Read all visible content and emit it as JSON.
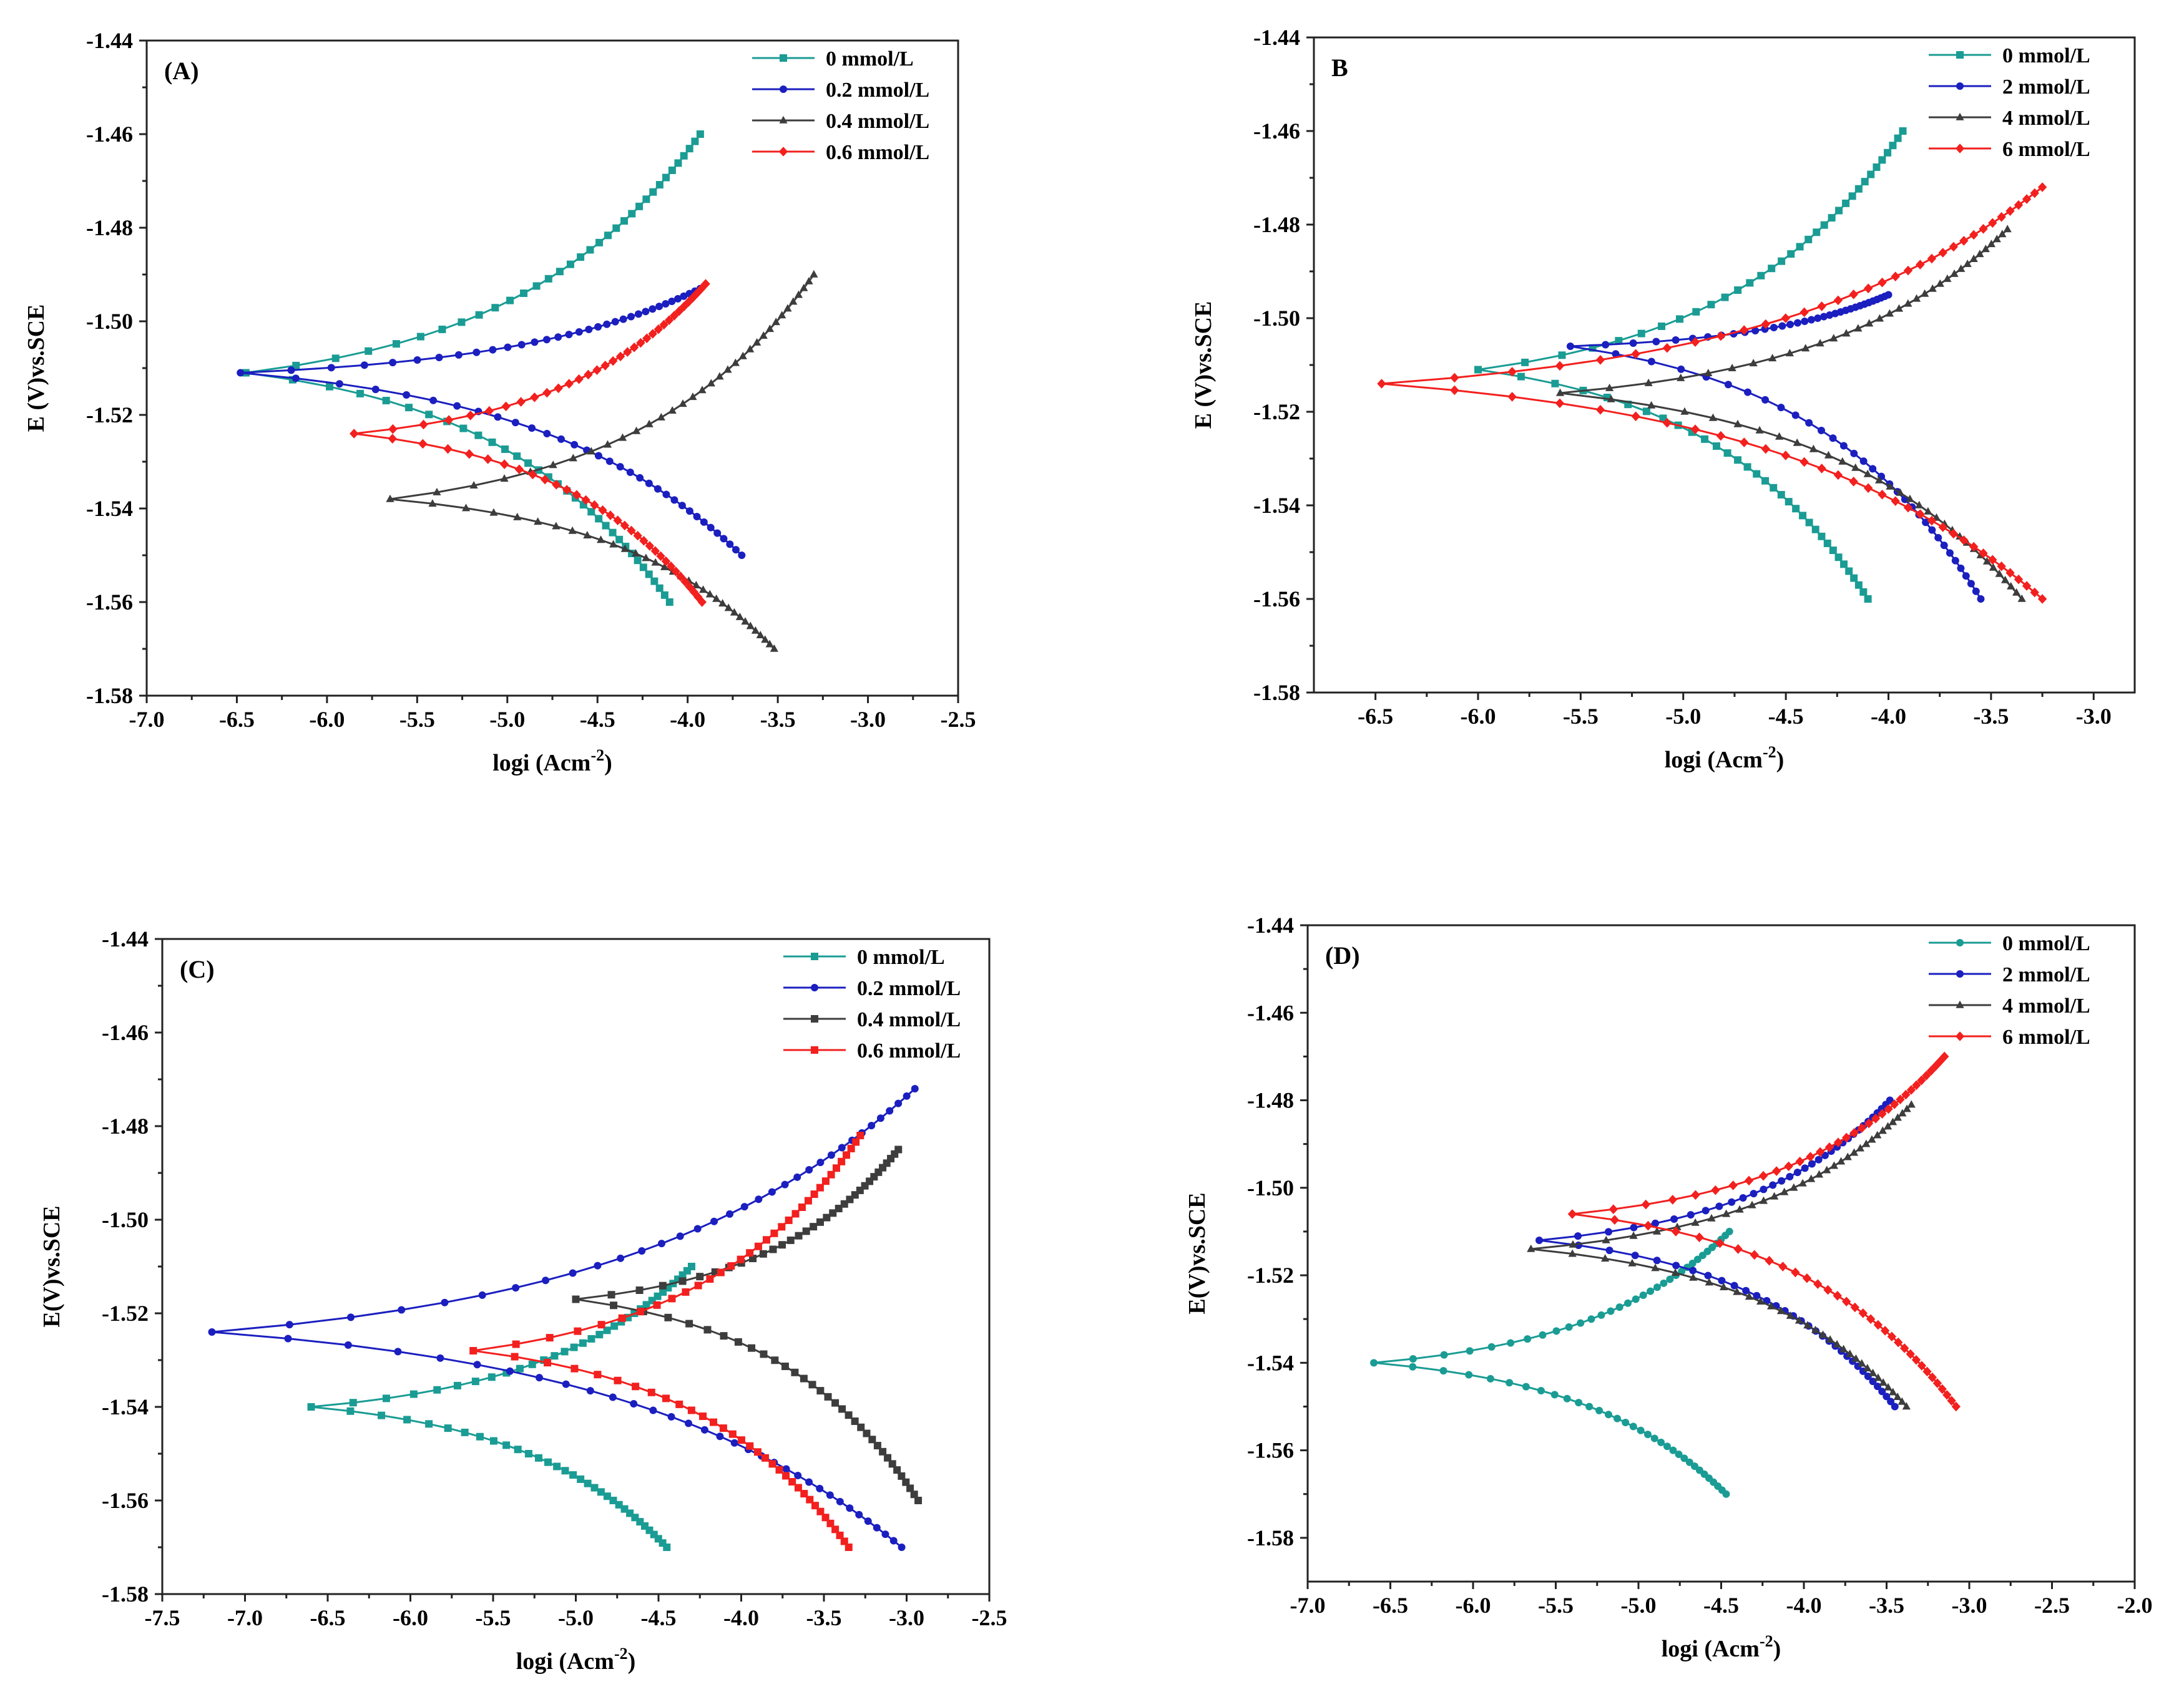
{
  "chart_data": [
    {
      "type": "line",
      "panel_label": "(A)",
      "xlabel": "logi (Acm",
      "xlabel_sup": "-2",
      "xlabel_end": ")",
      "ylabel": "E (V)vs.SCE",
      "xlim": [
        -7.0,
        -2.5
      ],
      "ylim": [
        -1.58,
        -1.44
      ],
      "xticks": [
        -7.0,
        -6.5,
        -6.0,
        -5.5,
        -5.0,
        -4.5,
        -4.0,
        -3.5,
        -3.0,
        -2.5
      ],
      "xtick_labels": [
        "-7.0",
        "-6.5",
        "-6.0",
        "-5.5",
        "-5.0",
        "-4.5",
        "-4.0",
        "-3.5",
        "-3.0",
        "-2.5"
      ],
      "yticks": [
        -1.44,
        -1.46,
        -1.48,
        -1.5,
        -1.52,
        -1.54,
        -1.56,
        -1.58
      ],
      "ytick_labels": [
        "-1.44",
        "-1.46",
        "-1.48",
        "-1.50",
        "-1.52",
        "-1.54",
        "-1.56",
        "-1.58"
      ],
      "legend_position": "top-right",
      "series": [
        {
          "name": "0 mmol/L",
          "color": "#1a9c94",
          "marker": "square",
          "ecorr": -1.511,
          "icorr": -6.45,
          "anodic": [
            -3.93,
            -1.46
          ],
          "cathodic": [
            -4.1,
            -1.56
          ]
        },
        {
          "name": "0.2 mmol/L",
          "color": "#1b1fbf",
          "marker": "circle",
          "ecorr": -1.511,
          "icorr": -6.48,
          "anodic": [
            -3.93,
            -1.493
          ],
          "cathodic": [
            -3.7,
            -1.55
          ]
        },
        {
          "name": "0.4 mmol/L",
          "color": "#3d3d3d",
          "marker": "triangle",
          "ecorr": -1.538,
          "icorr": -5.65,
          "anodic": [
            -3.3,
            -1.49
          ],
          "cathodic": [
            -3.52,
            -1.57
          ]
        },
        {
          "name": "0.6 mmol/L",
          "color": "#f2201e",
          "marker": "diamond",
          "ecorr": -1.524,
          "icorr": -5.85,
          "anodic": [
            -3.9,
            -1.492
          ],
          "cathodic": [
            -3.92,
            -1.56
          ]
        }
      ]
    },
    {
      "type": "line",
      "panel_label": "B",
      "xlabel": "logi (Acm",
      "xlabel_sup": "-2",
      "xlabel_end": ")",
      "ylabel": "E (V)vs.SCE",
      "xlim": [
        -6.8,
        -2.8
      ],
      "ylim": [
        -1.58,
        -1.44
      ],
      "xticks": [
        -6.5,
        -6.0,
        -5.5,
        -5.0,
        -4.5,
        -4.0,
        -3.5,
        -3.0
      ],
      "xtick_labels": [
        "-6.5",
        "-6.0",
        "-5.5",
        "-5.0",
        "-4.5",
        "-4.0",
        "-3.5",
        "-3.0"
      ],
      "yticks": [
        -1.44,
        -1.46,
        -1.48,
        -1.5,
        -1.52,
        -1.54,
        -1.56,
        -1.58
      ],
      "ytick_labels": [
        "-1.44",
        "-1.46",
        "-1.48",
        "-1.50",
        "-1.52",
        "-1.54",
        "-1.56",
        "-1.58"
      ],
      "legend_position": "top-right",
      "series": [
        {
          "name": "0 mmol/L",
          "color": "#1a9c94",
          "marker": "square",
          "ecorr": -1.511,
          "icorr": -6.0,
          "anodic": [
            -3.93,
            -1.46
          ],
          "cathodic": [
            -4.1,
            -1.56
          ]
        },
        {
          "name": "2 mmol/L",
          "color": "#1b1fbf",
          "marker": "circle",
          "ecorr": -1.506,
          "icorr": -5.55,
          "anodic": [
            -4.0,
            -1.495
          ],
          "cathodic": [
            -3.55,
            -1.56
          ]
        },
        {
          "name": "4 mmol/L",
          "color": "#3d3d3d",
          "marker": "triangle",
          "ecorr": -1.516,
          "icorr": -5.6,
          "anodic": [
            -3.42,
            -1.481
          ],
          "cathodic": [
            -3.35,
            -1.56
          ]
        },
        {
          "name": "6 mmol/L",
          "color": "#f2201e",
          "marker": "diamond",
          "ecorr": -1.514,
          "icorr": -6.47,
          "anodic": [
            -3.25,
            -1.472
          ],
          "cathodic": [
            -3.25,
            -1.56
          ]
        }
      ]
    },
    {
      "type": "line",
      "panel_label": "(C)",
      "xlabel": "logi (Acm",
      "xlabel_sup": "-2",
      "xlabel_end": ")",
      "ylabel": "E(V)vs.SCE",
      "xlim": [
        -7.5,
        -2.5
      ],
      "ylim": [
        -1.58,
        -1.44
      ],
      "xticks": [
        -7.5,
        -7.0,
        -6.5,
        -6.0,
        -5.5,
        -5.0,
        -4.5,
        -4.0,
        -3.5,
        -3.0,
        -2.5
      ],
      "xtick_labels": [
        "-7.5",
        "-7.0",
        "-6.5",
        "-6.0",
        "-5.5",
        "-5.0",
        "-4.5",
        "-4.0",
        "-3.5",
        "-3.0",
        "-2.5"
      ],
      "yticks": [
        -1.44,
        -1.46,
        -1.48,
        -1.5,
        -1.52,
        -1.54,
        -1.56,
        -1.58
      ],
      "ytick_labels": [
        "-1.44",
        "-1.46",
        "-1.48",
        "-1.50",
        "-1.52",
        "-1.54",
        "-1.56",
        "-1.58"
      ],
      "legend_position": "top-right",
      "series": [
        {
          "name": "0 mmol/L",
          "color": "#1a9c94",
          "marker": "square",
          "ecorr": -1.54,
          "icorr": -6.6,
          "anodic": [
            -4.3,
            -1.51
          ],
          "cathodic": [
            -4.45,
            -1.57
          ]
        },
        {
          "name": "0.2 mmol/L",
          "color": "#1b1fbf",
          "marker": "circle",
          "ecorr": -1.524,
          "icorr": -7.2,
          "anodic": [
            -2.95,
            -1.472
          ],
          "cathodic": [
            -3.03,
            -1.57
          ]
        },
        {
          "name": "0.4 mmol/L",
          "color": "#3d3d3d",
          "marker": "square",
          "ecorr": -1.517,
          "icorr": -5.0,
          "anodic": [
            -3.05,
            -1.485
          ],
          "cathodic": [
            -2.93,
            -1.56
          ]
        },
        {
          "name": "0.6 mmol/L",
          "color": "#f2201e",
          "marker": "square",
          "ecorr": -1.528,
          "icorr": -5.62,
          "anodic": [
            -3.28,
            -1.482
          ],
          "cathodic": [
            -3.35,
            -1.57
          ]
        }
      ]
    },
    {
      "type": "line",
      "panel_label": "(D)",
      "xlabel": "logi (Acm",
      "xlabel_sup": "-2",
      "xlabel_end": ")",
      "ylabel": "E(V)vs.SCE",
      "xlim": [
        -7.0,
        -2.0
      ],
      "ylim": [
        -1.59,
        -1.44
      ],
      "xticks": [
        -7.0,
        -6.5,
        -6.0,
        -5.5,
        -5.0,
        -4.5,
        -4.0,
        -3.5,
        -3.0,
        -2.5,
        -2.0
      ],
      "xtick_labels": [
        "-7.0",
        "-6.5",
        "-6.0",
        "-5.5",
        "-5.0",
        "-4.5",
        "-4.0",
        "-3.5",
        "-3.0",
        "-2.5",
        "-2.0"
      ],
      "yticks": [
        -1.44,
        -1.46,
        -1.48,
        -1.5,
        -1.52,
        -1.54,
        -1.56,
        -1.58
      ],
      "ytick_labels": [
        "-1.44",
        "-1.46",
        "-1.48",
        "-1.50",
        "-1.52",
        "-1.54",
        "-1.56",
        "-1.58"
      ],
      "legend_position": "top-right",
      "series": [
        {
          "name": "0 mmol/L",
          "color": "#1a9c94",
          "marker": "circle",
          "ecorr": -1.54,
          "icorr": -6.6,
          "anodic": [
            -4.45,
            -1.51
          ],
          "cathodic": [
            -4.47,
            -1.57
          ]
        },
        {
          "name": "2 mmol/L",
          "color": "#1b1fbf",
          "marker": "circle",
          "ecorr": -1.512,
          "icorr": -5.6,
          "anodic": [
            -3.48,
            -1.48
          ],
          "cathodic": [
            -3.45,
            -1.55
          ]
        },
        {
          "name": "4 mmol/L",
          "color": "#3d3d3d",
          "marker": "triangle",
          "ecorr": -1.514,
          "icorr": -5.65,
          "anodic": [
            -3.35,
            -1.481
          ],
          "cathodic": [
            -3.38,
            -1.55
          ]
        },
        {
          "name": "6 mmol/L",
          "color": "#f2201e",
          "marker": "diamond",
          "ecorr": -1.506,
          "icorr": -5.4,
          "anodic": [
            -3.15,
            -1.47
          ],
          "cathodic": [
            -3.08,
            -1.55
          ]
        }
      ]
    }
  ]
}
